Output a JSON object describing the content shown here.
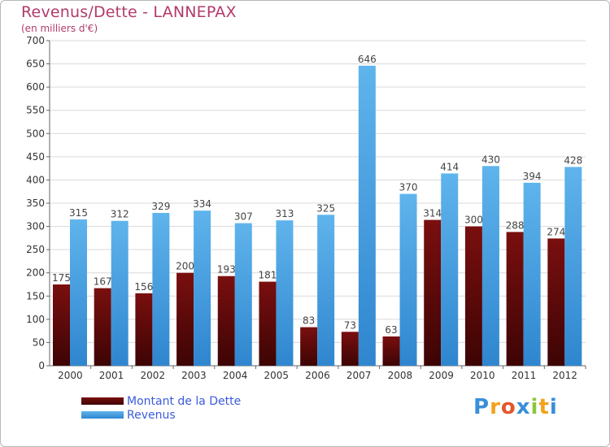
{
  "title": "Revenus/Dette - LANNEPAX",
  "subtitle": "(en milliers d'€)",
  "legend": {
    "dette": "Montant de la Dette",
    "revenus": "Revenus"
  },
  "logo": {
    "text": "Proxiti",
    "letters": [
      "P",
      "r",
      "o",
      "x",
      "i",
      "t",
      "i"
    ],
    "colors": [
      "#3a8fd8",
      "#f2a21c",
      "#e4552b",
      "#3a8fd8",
      "#8cc63f",
      "#f2a21c",
      "#3a8fd8"
    ]
  },
  "colors": {
    "dette_top": "#7a0f0f",
    "dette_bottom": "#3d0404",
    "revenus_top": "#5fb4ec",
    "revenus_bottom": "#2f86cf",
    "title": "#b23a6b",
    "legend_text": "#3b5bdb"
  },
  "chart_data": {
    "type": "bar",
    "title": "Revenus/Dette - LANNEPAX",
    "subtitle": "(en milliers d'€)",
    "xlabel": "",
    "ylabel": "",
    "ylim": [
      0,
      700
    ],
    "yticks": [
      0,
      50,
      100,
      150,
      200,
      250,
      300,
      350,
      400,
      450,
      500,
      550,
      600,
      650,
      700
    ],
    "grid": true,
    "legend_position": "bottom-left",
    "categories": [
      "2000",
      "2001",
      "2002",
      "2003",
      "2004",
      "2005",
      "2006",
      "2007",
      "2008",
      "2009",
      "2010",
      "2011",
      "2012"
    ],
    "series": [
      {
        "name": "Montant de la Dette",
        "values": [
          175,
          167,
          156,
          200,
          193,
          181,
          83,
          73,
          63,
          314,
          300,
          288,
          274
        ]
      },
      {
        "name": "Revenus",
        "values": [
          315,
          312,
          329,
          334,
          307,
          313,
          325,
          646,
          370,
          414,
          430,
          394,
          428
        ]
      }
    ]
  }
}
